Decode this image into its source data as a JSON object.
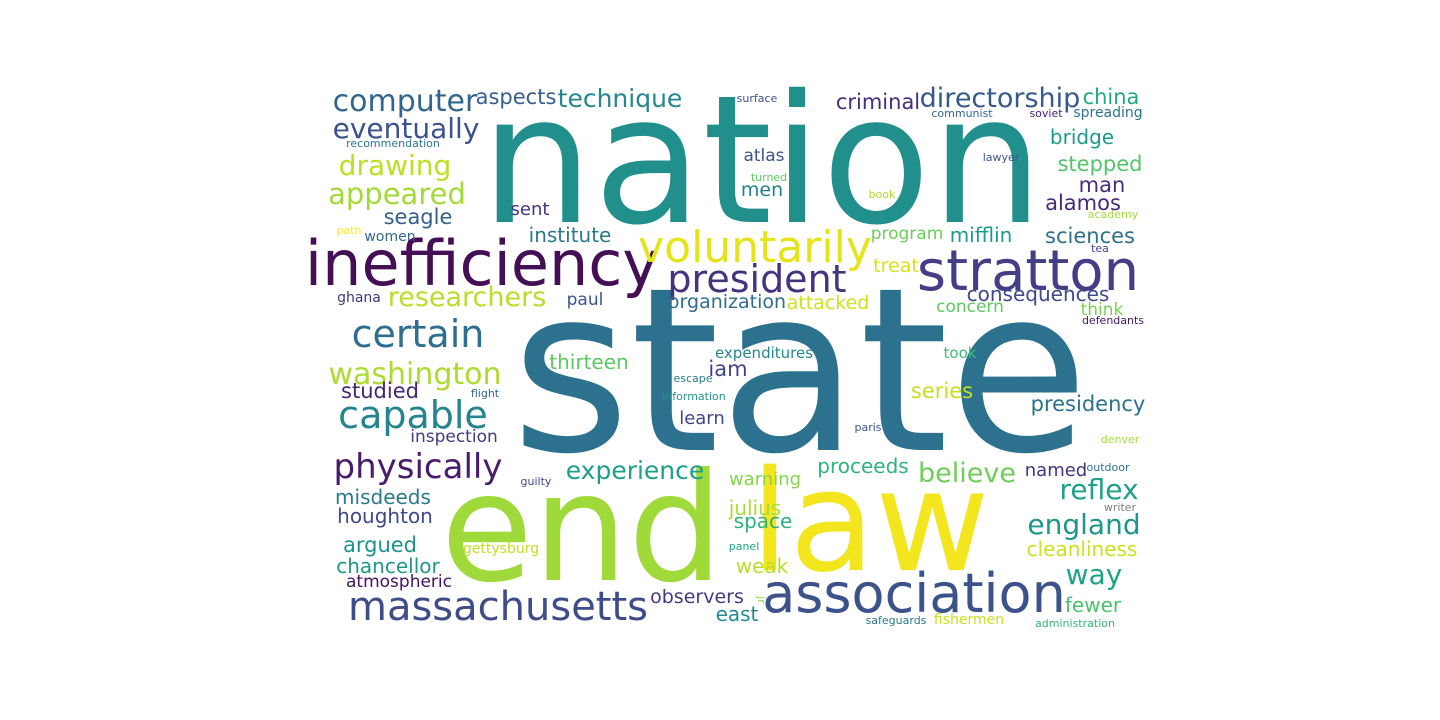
{
  "word_cloud": {
    "words": [
      {
        "text": "state",
        "color": "#2c728e"
      },
      {
        "text": "nation",
        "color": "#21908d"
      },
      {
        "text": "end",
        "color": "#9fda3a"
      },
      {
        "text": "law",
        "color": "#f3e61e"
      },
      {
        "text": "inefficiency",
        "color": "#440f54"
      },
      {
        "text": "association",
        "color": "#3b528b"
      },
      {
        "text": "stratton",
        "color": "#433e85"
      },
      {
        "text": "voluntarily",
        "color": "#e5e419"
      },
      {
        "text": "massachusetts",
        "color": "#3e4c8a"
      },
      {
        "text": "president",
        "color": "#46337e"
      },
      {
        "text": "certain",
        "color": "#2e6e8e"
      },
      {
        "text": "capable",
        "color": "#25858e"
      },
      {
        "text": "physically",
        "color": "#481b6d"
      },
      {
        "text": "washington",
        "color": "#addc30"
      },
      {
        "text": "computer",
        "color": "#31668e"
      },
      {
        "text": "appeared",
        "color": "#a2da37"
      },
      {
        "text": "researchers",
        "color": "#b8de29"
      },
      {
        "text": "drawing",
        "color": "#bddf26"
      },
      {
        "text": "eventually",
        "color": "#3b528b"
      },
      {
        "text": "directorship",
        "color": "#38598c"
      },
      {
        "text": "technique",
        "color": "#24878e"
      },
      {
        "text": "england",
        "color": "#1f968b"
      },
      {
        "text": "experience",
        "color": "#1f9e89"
      },
      {
        "text": "believe",
        "color": "#6ece58"
      },
      {
        "text": "reflex",
        "color": "#1fa187"
      },
      {
        "text": "way",
        "color": "#20a486"
      },
      {
        "text": "aspects",
        "color": "#355f8d"
      },
      {
        "text": "criminal",
        "color": "#472d7b"
      },
      {
        "text": "china",
        "color": "#22a884"
      },
      {
        "text": "bridge",
        "color": "#1f9a8a"
      },
      {
        "text": "stepped",
        "color": "#54c568"
      },
      {
        "text": "man",
        "color": "#472c7a"
      },
      {
        "text": "alamos",
        "color": "#482878"
      },
      {
        "text": "seagle",
        "color": "#35608d"
      },
      {
        "text": "sent",
        "color": "#46327e"
      },
      {
        "text": "institute",
        "color": "#2a788e"
      },
      {
        "text": "mifflin",
        "color": "#1e9c89"
      },
      {
        "text": "sciences",
        "color": "#2d708e"
      },
      {
        "text": "consequences",
        "color": "#3e4989"
      },
      {
        "text": "organization",
        "color": "#2f6c8e"
      },
      {
        "text": "attacked",
        "color": "#d0e11c"
      },
      {
        "text": "treat",
        "color": "#d8e219"
      },
      {
        "text": "program",
        "color": "#6ccd5a"
      },
      {
        "text": "concern",
        "color": "#5ec962"
      },
      {
        "text": "think",
        "color": "#7ad151"
      },
      {
        "text": "men",
        "color": "#26818e"
      },
      {
        "text": "atlas",
        "color": "#3b528b"
      },
      {
        "text": "paul",
        "color": "#3a548c"
      },
      {
        "text": "thirteen",
        "color": "#5cc863"
      },
      {
        "text": "iam",
        "color": "#414487"
      },
      {
        "text": "expenditures",
        "color": "#24868e"
      },
      {
        "text": "took",
        "color": "#3dbc74"
      },
      {
        "text": "studied",
        "color": "#482475"
      },
      {
        "text": "series",
        "color": "#c5e021"
      },
      {
        "text": "presidency",
        "color": "#2c718e"
      },
      {
        "text": "learn",
        "color": "#3f4788"
      },
      {
        "text": "inspection",
        "color": "#443983"
      },
      {
        "text": "proceeds",
        "color": "#2eb37c"
      },
      {
        "text": "named",
        "color": "#46337f"
      },
      {
        "text": "warning",
        "color": "#86d549"
      },
      {
        "text": "julius",
        "color": "#a8db34"
      },
      {
        "text": "space",
        "color": "#2db27d"
      },
      {
        "text": "misdeeds",
        "color": "#2a788e"
      },
      {
        "text": "houghton",
        "color": "#3e4a89"
      },
      {
        "text": "argued",
        "color": "#20928c"
      },
      {
        "text": "chancellor",
        "color": "#1f988b"
      },
      {
        "text": "atmospheric",
        "color": "#471063"
      },
      {
        "text": "weak",
        "color": "#bade28"
      },
      {
        "text": "observers",
        "color": "#453882"
      },
      {
        "text": "east",
        "color": "#23898e"
      },
      {
        "text": "cleanliness",
        "color": "#cae11f"
      },
      {
        "text": "fewer",
        "color": "#4ac16d"
      },
      {
        "text": "women",
        "color": "#31678e"
      },
      {
        "text": "ghana",
        "color": "#453781"
      },
      {
        "text": "surface",
        "color": "#3a548c"
      },
      {
        "text": "communist",
        "color": "#31688e"
      },
      {
        "text": "soviet",
        "color": "#482173"
      },
      {
        "text": "spreading",
        "color": "#2c738e"
      },
      {
        "text": "recommendation",
        "color": "#2a768e"
      },
      {
        "text": "lawyer",
        "color": "#39568c"
      },
      {
        "text": "turned",
        "color": "#5ec962"
      },
      {
        "text": "book",
        "color": "#addc30"
      },
      {
        "text": "academy",
        "color": "#a2da37"
      },
      {
        "text": "tea",
        "color": "#414487"
      },
      {
        "text": "path",
        "color": "#fde725"
      },
      {
        "text": "defendants",
        "color": "#481668"
      },
      {
        "text": "escape",
        "color": "#287d8e"
      },
      {
        "text": "flight",
        "color": "#31688e"
      },
      {
        "text": "information",
        "color": "#21918c"
      },
      {
        "text": "paris",
        "color": "#3b528b"
      },
      {
        "text": "denver",
        "color": "#a5db36"
      },
      {
        "text": "outdoor",
        "color": "#2c728e"
      },
      {
        "text": "guilty",
        "color": "#3e4989"
      },
      {
        "text": "writer",
        "color": "#7e7e7e"
      },
      {
        "text": "gettysburg",
        "color": "#c2df23"
      },
      {
        "text": "panel",
        "color": "#20a386"
      },
      {
        "text": "jr",
        "color": "#8ed645"
      },
      {
        "text": "safeguards",
        "color": "#2a788e"
      },
      {
        "text": "fishermen",
        "color": "#c8e020"
      },
      {
        "text": "administration",
        "color": "#35b779"
      }
    ]
  }
}
